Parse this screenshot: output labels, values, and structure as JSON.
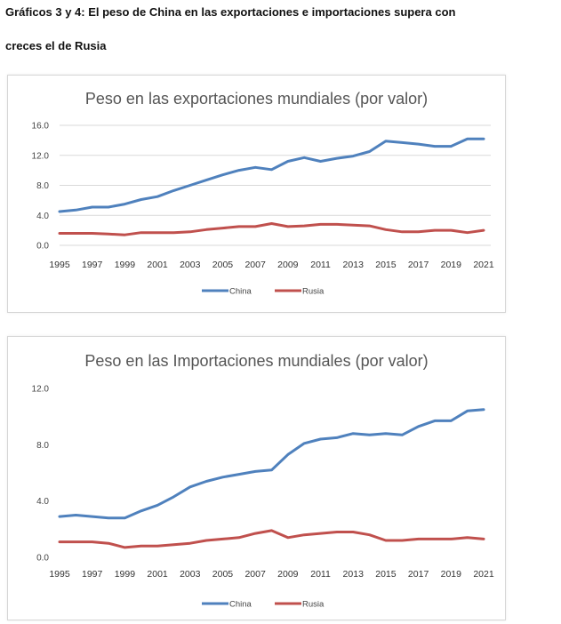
{
  "heading": {
    "line1": "Gráficos 3 y 4: El peso de China en las exportaciones e importaciones supera con",
    "line2": "creces el de Rusia"
  },
  "colors": {
    "china": "#4f81bd",
    "rusia": "#c0504d"
  },
  "chart_data": [
    {
      "type": "line",
      "title": "Peso en las exportaciones mundiales (por valor)",
      "xlabel": "",
      "ylabel": "",
      "ylim": [
        0,
        16
      ],
      "yticks": [
        "16.0",
        "12.0",
        "8.0",
        "4.0",
        "0.0"
      ],
      "ytick_values": [
        16,
        12,
        8,
        4,
        0
      ],
      "x": [
        1995,
        1996,
        1997,
        1998,
        1999,
        2000,
        2001,
        2002,
        2003,
        2004,
        2005,
        2006,
        2007,
        2008,
        2009,
        2010,
        2011,
        2012,
        2013,
        2014,
        2015,
        2016,
        2017,
        2018,
        2019,
        2020,
        2021
      ],
      "xticks": [
        "1995",
        "1997",
        "1999",
        "2001",
        "2003",
        "2005",
        "2007",
        "2009",
        "2011",
        "2013",
        "2015",
        "2017",
        "2019",
        "2021"
      ],
      "grid": true,
      "legend": "bottom",
      "series": [
        {
          "name": "China",
          "values": [
            4.5,
            4.7,
            5.1,
            5.1,
            5.5,
            6.1,
            6.5,
            7.3,
            8.0,
            8.7,
            9.4,
            10.0,
            10.4,
            10.1,
            11.2,
            11.7,
            11.2,
            11.6,
            11.9,
            12.5,
            13.9,
            13.7,
            13.5,
            13.2,
            13.2,
            14.2,
            14.2
          ]
        },
        {
          "name": "Rusia",
          "values": [
            1.6,
            1.6,
            1.6,
            1.5,
            1.4,
            1.7,
            1.7,
            1.7,
            1.8,
            2.1,
            2.3,
            2.5,
            2.5,
            2.9,
            2.5,
            2.6,
            2.8,
            2.8,
            2.7,
            2.6,
            2.1,
            1.8,
            1.8,
            2.0,
            2.0,
            1.7,
            2.0
          ]
        }
      ]
    },
    {
      "type": "line",
      "title": "Peso en las Importaciones mundiales (por valor)",
      "xlabel": "",
      "ylabel": "",
      "ylim": [
        0,
        12
      ],
      "yticks": [
        "12.0",
        "8.0",
        "4.0",
        "0.0"
      ],
      "ytick_values": [
        12,
        8,
        4,
        0
      ],
      "x": [
        1995,
        1996,
        1997,
        1998,
        1999,
        2000,
        2001,
        2002,
        2003,
        2004,
        2005,
        2006,
        2007,
        2008,
        2009,
        2010,
        2011,
        2012,
        2013,
        2014,
        2015,
        2016,
        2017,
        2018,
        2019,
        2020,
        2021
      ],
      "xticks": [
        "1995",
        "1997",
        "1999",
        "2001",
        "2003",
        "2005",
        "2007",
        "2009",
        "2011",
        "2013",
        "2015",
        "2017",
        "2019",
        "2021"
      ],
      "grid": false,
      "legend": "bottom",
      "series": [
        {
          "name": "China",
          "values": [
            2.9,
            3.0,
            2.9,
            2.8,
            2.8,
            3.3,
            3.7,
            4.3,
            5.0,
            5.4,
            5.7,
            5.9,
            6.1,
            6.2,
            7.3,
            8.1,
            8.4,
            8.5,
            8.8,
            8.7,
            8.8,
            8.7,
            9.3,
            9.7,
            9.7,
            10.4,
            10.5
          ]
        },
        {
          "name": "Rusia",
          "values": [
            1.1,
            1.1,
            1.1,
            1.0,
            0.7,
            0.8,
            0.8,
            0.9,
            1.0,
            1.2,
            1.3,
            1.4,
            1.7,
            1.9,
            1.4,
            1.6,
            1.7,
            1.8,
            1.8,
            1.6,
            1.2,
            1.2,
            1.3,
            1.3,
            1.3,
            1.4,
            1.3
          ]
        }
      ]
    }
  ]
}
